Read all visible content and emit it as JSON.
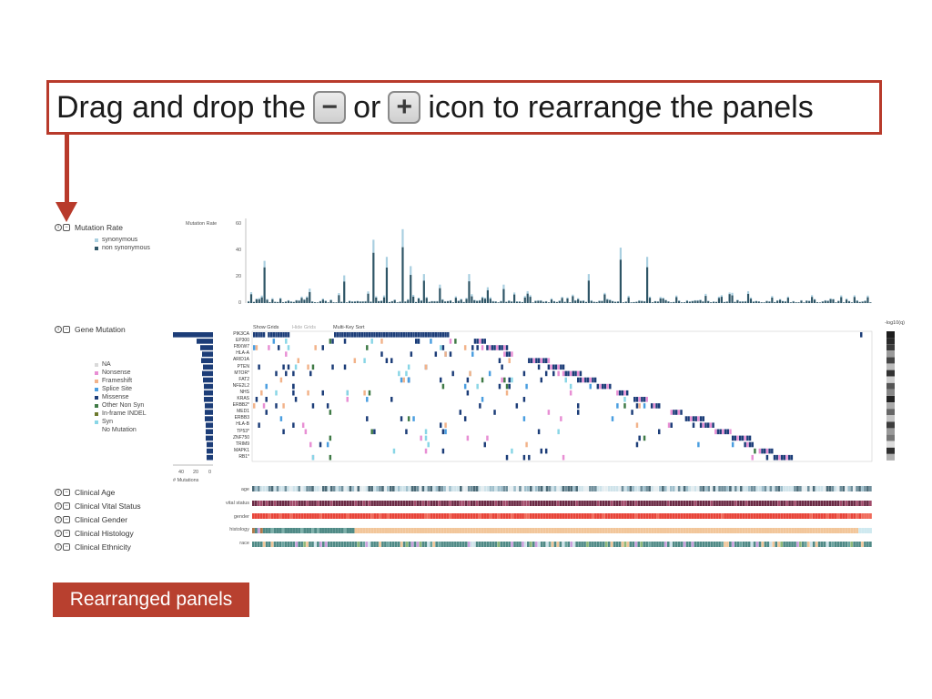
{
  "instruction": {
    "before": "Drag and drop the",
    "minus_glyph": "−",
    "middle": "or",
    "plus_glyph": "+",
    "after": "icon to rearrange the panels"
  },
  "panels": [
    {
      "name": "Mutation Rate"
    },
    {
      "name": "Gene Mutation"
    },
    {
      "name": "Clinical Age"
    },
    {
      "name": "Clinical Vital Status"
    },
    {
      "name": "Clinical Gender"
    },
    {
      "name": "Clinical Histology"
    },
    {
      "name": "Clinical Ethnicity"
    }
  ],
  "panel_controls": {
    "info": "i",
    "collapse": "−"
  },
  "mutation_rate": {
    "axis_title": "Mutation Rate",
    "ticks": [
      "60",
      "40",
      "20",
      "0"
    ],
    "legend": [
      {
        "label": "synonymous",
        "color": "#a9cfe0"
      },
      {
        "label": "non synonymous",
        "color": "#2e5566"
      }
    ]
  },
  "gene_mutation": {
    "toolbar": {
      "show_grids": "Show Grids",
      "hide_grids": "Hide Grids",
      "sort": "Multi-Key Sort"
    },
    "right_label": "-log10(q)",
    "genes": [
      "PIK3CA",
      "EP300",
      "FBXW7",
      "HLA-A",
      "ARID1A",
      "PTEN",
      "MTOR*",
      "FAT2",
      "NFE2L2",
      "NHS",
      "KRAS",
      "ERBB2*",
      "MED1",
      "ERBB3",
      "HLA-B",
      "TP53*",
      "ZNF750",
      "TRIM9",
      "MAPK1",
      "RB1*"
    ],
    "mutations_axis": {
      "ticks": [
        "40",
        "20",
        "0"
      ],
      "title": "# Mutations"
    },
    "legend": [
      {
        "label": "NA",
        "color": "#d9d9d9"
      },
      {
        "label": "Nonsense",
        "color": "#e88fd4"
      },
      {
        "label": "Frameshift",
        "color": "#f2b38a"
      },
      {
        "label": "Splice Site",
        "color": "#4a9ee0"
      },
      {
        "label": "Missense",
        "color": "#1c3d78"
      },
      {
        "label": "Other Non Syn",
        "color": "#3f7a46"
      },
      {
        "label": "In-frame INDEL",
        "color": "#6d7a2e"
      },
      {
        "label": "Syn",
        "color": "#89d6e6"
      },
      {
        "label": "No Mutation",
        "color": "#ffffff"
      }
    ]
  },
  "clinical_tracks": {
    "labels": [
      "age",
      "vital status",
      "gender",
      "histology",
      "race"
    ]
  },
  "footer": {
    "label": "Rearranged panels"
  },
  "colors": {
    "accent": "#b83a2b",
    "bar_dark": "#2e5566",
    "bar_light": "#a9cfe0"
  }
}
